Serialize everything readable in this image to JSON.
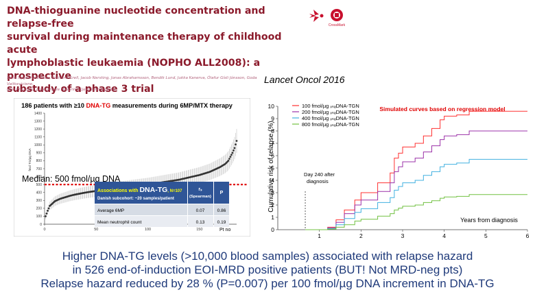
{
  "header": {
    "title": "DNA-thioguanine nucleotide concentration and relapse-free survival during maintenance therapy of childhood acute lymphoblastic leukaemia (NOPHO ALL2008): a prospective substudy of a phase 3 trial",
    "title_lines": [
      "DNA-thioguanine nucleotide concentration and relapse-free",
      "survival during maintenance therapy of childhood acute",
      "lymphoblastic leukaemia (NOPHO ALL2008): a prospective",
      "substudy of a phase 3 trial"
    ],
    "authors_lines": [
      "Stine Nygaard Nielsen, Kathrine Grell, Jacob Nersting, Jonas Abrahamsson, Bendik Lund, Jukka Kanerva, Ólafur Gísli Jónsson, Goda Vaitkeviciene,",
      "Kaie Pruunsild, Lisa Lyngsie Hjalgrim, Kjeld Schmiegelow"
    ],
    "journal": "Lancet Oncol 2016",
    "logo_text": "CrossMark",
    "colors": {
      "title": "#8b1a2b",
      "logo": "#c8102e"
    }
  },
  "left_chart": {
    "caption_prefix": "186 patients with ≥10 ",
    "caption_highlight": "DNA-TG",
    "caption_suffix": " measurements during 6MP/MTX therapy",
    "ylabel": "fmol TG/µg DNA",
    "median_label": "Median: 500 fmol/µg DNA",
    "pt_label": "Pt no",
    "table": {
      "header_prefix": "Associations with ",
      "header_highlight": "DNA-TG",
      "header_n": ", N=107",
      "subheader": "Danish subcohort: ~20 samples/patient",
      "col_r": "rₛ",
      "col_r_sub": "(Spearman)",
      "col_p": "P",
      "rows": [
        {
          "label": "Average 6MP",
          "r": "0.07",
          "p": "0.86"
        },
        {
          "label": "Mean neutrophil count",
          "r": "0.13",
          "p": "0.19"
        }
      ]
    },
    "colors": {
      "median": "#e00000",
      "highlight": "#e00000",
      "table_header": "#2f5597",
      "table_header_text": "#ffff00",
      "dots": "#333333"
    }
  },
  "chart_data": [
    {
      "type": "scatter",
      "title": "186 patients with ≥10 DNA-TG measurements during 6MP/MTX therapy",
      "xlabel": "Pt no",
      "ylabel": "fmol TG/µg DNA",
      "xlim": [
        0,
        186
      ],
      "ylim": [
        0,
        1400
      ],
      "xticks": [
        0,
        50,
        100,
        150
      ],
      "yticks": [
        0,
        100,
        200,
        300,
        400,
        500,
        600,
        700,
        800,
        900,
        1000,
        1100,
        1200,
        1300,
        1400
      ],
      "median": 500,
      "grid": false,
      "points_description": "patients sorted by median DNA-TG with range bars",
      "series": [
        {
          "x": [
            1,
            3,
            5,
            10,
            15,
            20,
            25,
            30,
            40,
            50,
            60,
            70,
            80,
            90,
            100,
            110,
            120,
            130,
            140,
            150,
            160,
            165,
            170,
            175,
            178,
            180,
            182,
            184,
            186
          ],
          "y": [
            100,
            170,
            230,
            290,
            320,
            340,
            360,
            375,
            400,
            420,
            440,
            455,
            470,
            485,
            500,
            520,
            540,
            560,
            590,
            620,
            660,
            690,
            720,
            760,
            800,
            850,
            900,
            960,
            1050
          ]
        }
      ]
    },
    {
      "type": "line",
      "title": "Simulated curves based on regression model",
      "xlabel": "Years from diagnosis",
      "ylabel": "Cumulative risk of relapse (%)",
      "xlim": [
        0,
        6
      ],
      "ylim": [
        0,
        10
      ],
      "xticks": [
        1,
        2,
        3,
        4,
        5,
        6
      ],
      "yticks": [
        0,
        1,
        2,
        3,
        4,
        5,
        6,
        7,
        8,
        9,
        10
      ],
      "legend": "top-left",
      "annotation": "Day 240 after diagnosis",
      "annotation_x": 0.66,
      "series": [
        {
          "name": "100 fmol/µg ᵥₙₐDNA-TGN",
          "color": "#ff3030",
          "x": [
            0.66,
            1.2,
            1.4,
            1.6,
            1.85,
            2.0,
            2.4,
            2.7,
            2.8,
            2.9,
            3.0,
            3.3,
            3.5,
            3.7,
            3.9,
            4.0,
            4.3,
            4.6,
            4.7,
            6.0
          ],
          "y": [
            0,
            0.2,
            0.8,
            1.6,
            2.4,
            3.0,
            3.8,
            4.6,
            5.8,
            6.2,
            6.7,
            7.0,
            7.6,
            8.2,
            8.9,
            9.2,
            9.3,
            9.6,
            9.6,
            9.6
          ]
        },
        {
          "name": "200 fmol/µg ᵥₙₐDNA-TGN",
          "color": "#9b30a8",
          "x": [
            0.66,
            1.2,
            1.4,
            1.6,
            1.85,
            2.0,
            2.4,
            2.7,
            2.8,
            2.9,
            3.0,
            3.3,
            3.5,
            3.7,
            3.9,
            4.0,
            4.3,
            4.6,
            6.0
          ],
          "y": [
            0,
            0.15,
            0.6,
            1.3,
            2.0,
            2.4,
            3.1,
            3.8,
            4.7,
            5.1,
            5.5,
            5.8,
            6.3,
            6.8,
            7.3,
            7.6,
            7.7,
            8.0,
            8.0
          ]
        },
        {
          "name": "400 fmol/µg ᵥₙₐDNA-TGN",
          "color": "#40b0e0",
          "x": [
            0.66,
            1.2,
            1.4,
            1.6,
            1.85,
            2.0,
            2.4,
            2.7,
            2.8,
            2.9,
            3.0,
            3.3,
            3.5,
            3.7,
            3.9,
            4.0,
            4.3,
            4.6,
            6.0
          ],
          "y": [
            0,
            0.1,
            0.4,
            0.9,
            1.4,
            1.7,
            2.2,
            2.6,
            3.2,
            3.5,
            3.8,
            4.0,
            4.4,
            4.7,
            5.1,
            5.3,
            5.4,
            5.7,
            5.7
          ]
        },
        {
          "name": "800 fmol/µg ᵥₙₐDNA-TGN",
          "color": "#70c040",
          "x": [
            0.66,
            1.2,
            1.4,
            1.6,
            1.85,
            2.0,
            2.4,
            2.7,
            2.8,
            2.9,
            3.0,
            3.3,
            3.5,
            3.7,
            3.9,
            4.0,
            4.3,
            4.6,
            6.0
          ],
          "y": [
            0,
            0.05,
            0.2,
            0.4,
            0.7,
            0.85,
            1.1,
            1.3,
            1.6,
            1.75,
            1.9,
            2.0,
            2.2,
            2.35,
            2.55,
            2.65,
            2.7,
            2.85,
            2.85
          ]
        }
      ]
    }
  ],
  "right_chart": {
    "title": "Simulated curves based on regression model",
    "ylabel": "Cumulative risk of relapse (%)",
    "xlabel": "Years from diagnosis",
    "annotation_line1": "Day 240 after",
    "annotation_line2": "diagnosis",
    "colors": {
      "title": "#e00000"
    }
  },
  "conclusion": {
    "line1": "Higher DNA-TG levels (>10,000 blood samples) associated with relapse hazard",
    "line2": "in 526 end-of-induction EOI-MRD positive patients (BUT! Not MRD-neg pts)",
    "line3": "Relapse hazard reduced by 28 % (P=0.007) per 100 fmol/µg DNA increment in DNA-TG"
  }
}
